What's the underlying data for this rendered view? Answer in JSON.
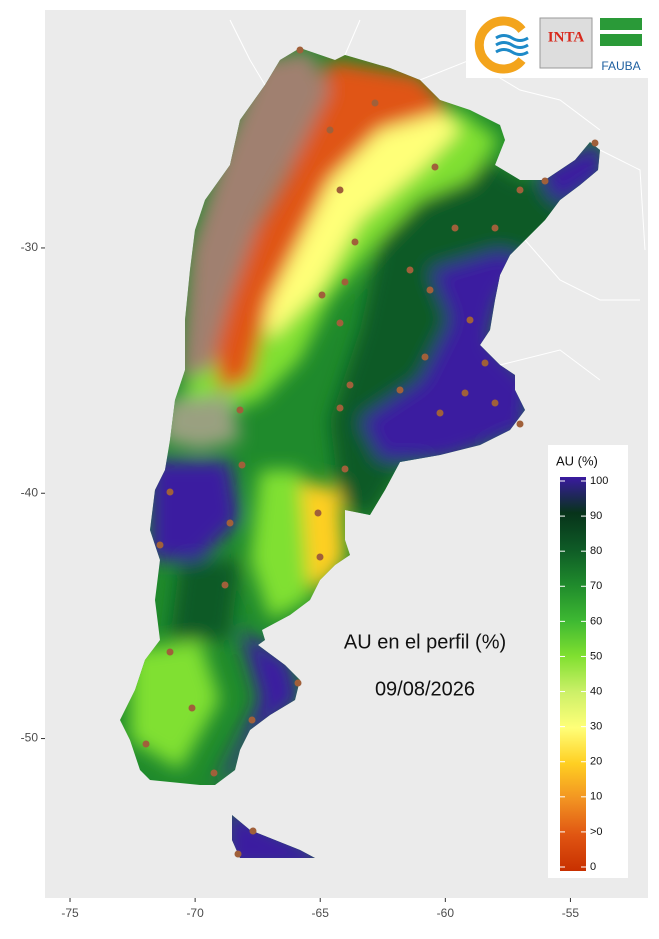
{
  "map": {
    "logos": {
      "inta": "INTA",
      "fauba": "FAUBA"
    },
    "annotation": {
      "title": "AU en el perfil (%)",
      "date": "09/08/2026"
    },
    "xlim": [
      -76,
      -51.9
    ],
    "ylim": [
      -56.5,
      -20.3
    ],
    "xticks": [
      -75,
      -70,
      -65,
      -60,
      -55
    ],
    "yticks": [
      -30,
      -40,
      -50
    ],
    "legend": {
      "title": "AU (%)",
      "labels": [
        "100",
        "90",
        "80",
        "70",
        "60",
        "50",
        "40",
        "30",
        "20",
        "10",
        ">0",
        "0"
      ],
      "colors": [
        "#3a1aa0",
        "#07331a",
        "#0e5a26",
        "#1f8a2c",
        "#3db832",
        "#80e030",
        "#ccf068",
        "#ffff78",
        "#ffcf22",
        "#f29322",
        "#e05512",
        "#c83000"
      ]
    }
  }
}
